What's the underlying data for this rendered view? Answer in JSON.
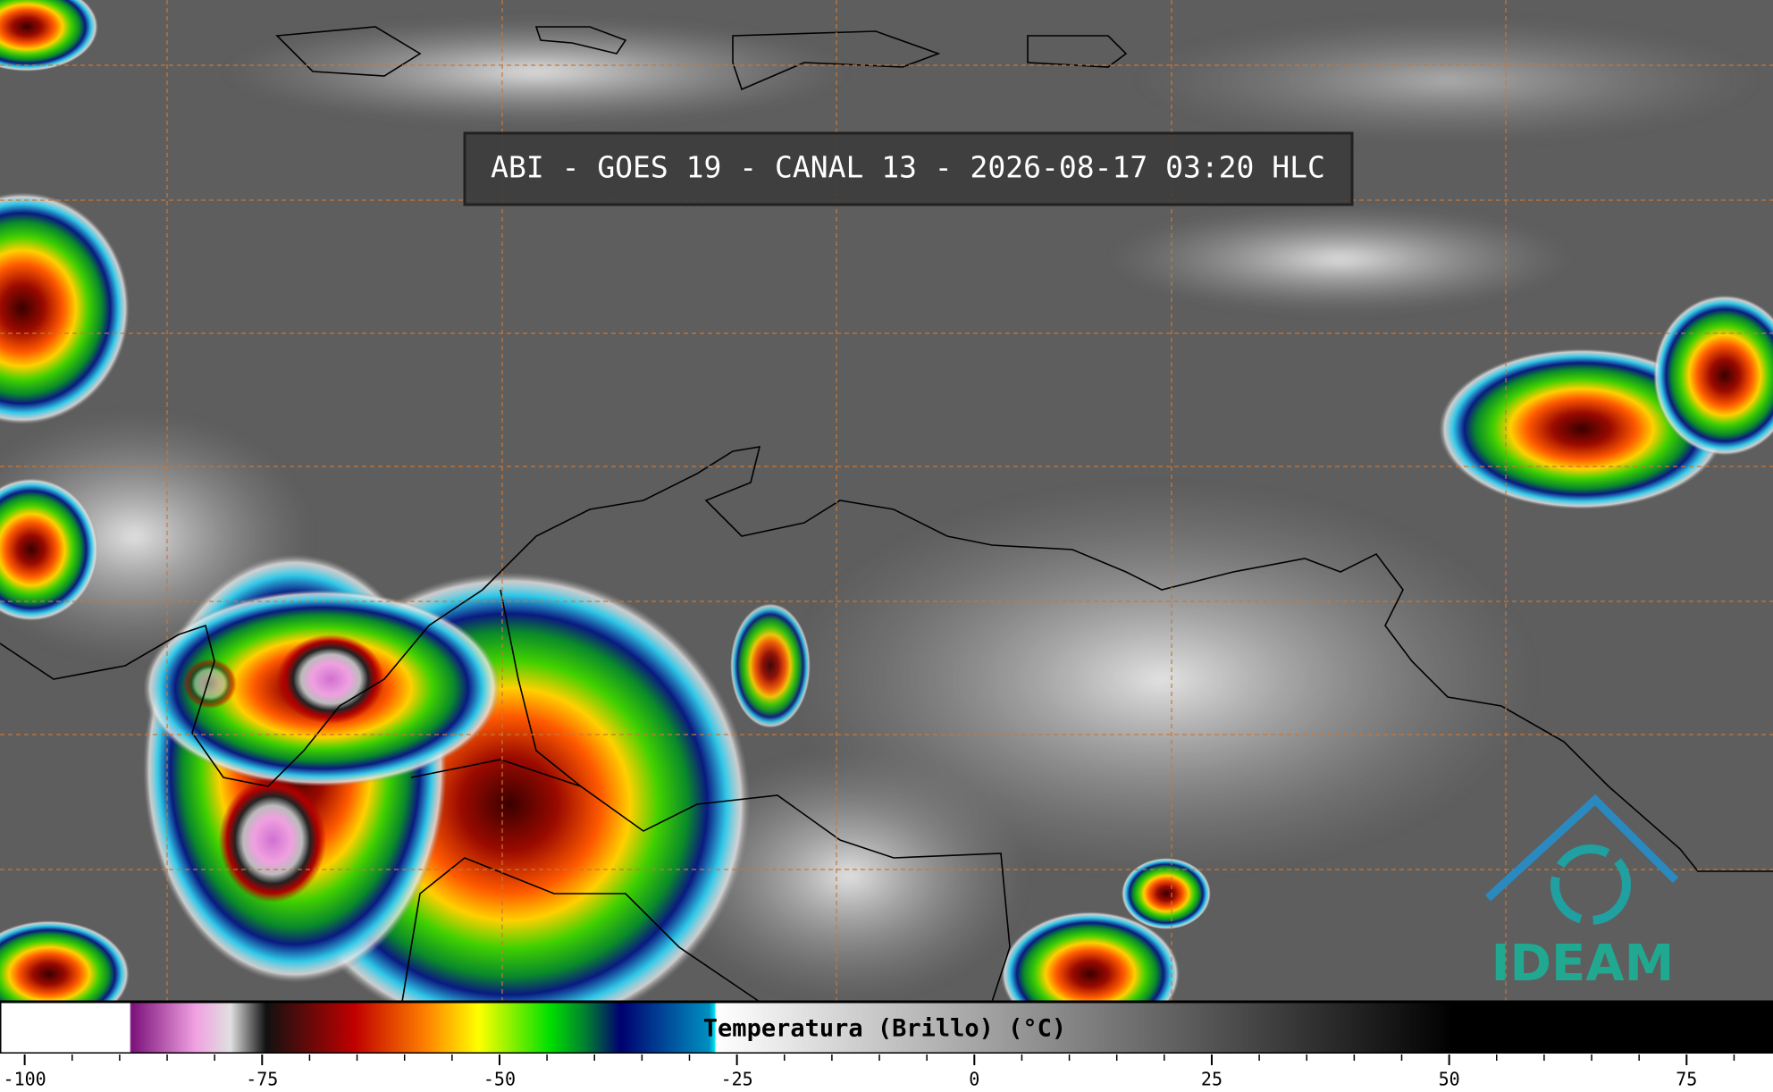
{
  "title": "ABI - GOES 19 - CANAL 13 - 2026-08-17 03:20 HLC",
  "colorbar": {
    "label": "Temperatura (Brillo) (°C)",
    "lim": [
      -102.6,
      84.1
    ],
    "ticks": [
      -100,
      -75,
      -50,
      -25,
      0,
      25,
      50,
      75
    ]
  },
  "logo": "IDEAM"
}
